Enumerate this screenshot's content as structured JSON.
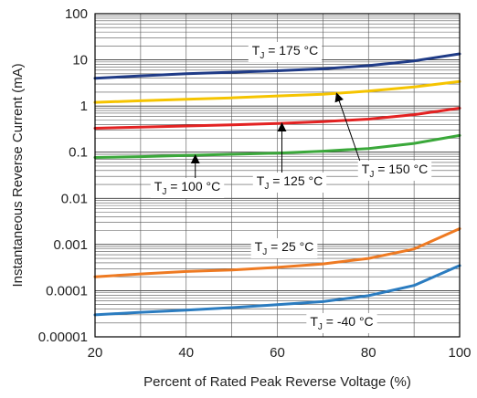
{
  "chart_data": {
    "type": "line",
    "xlabel": "Percent of Rated Peak Reverse Voltage (%)",
    "ylabel": "Instantaneous Reverse Current (mA)",
    "xlim": [
      20,
      100
    ],
    "ylim": [
      1e-05,
      100
    ],
    "yscale": "log",
    "grid": true,
    "x_ticks": [
      20,
      40,
      60,
      80,
      100
    ],
    "x_tick_labels": [
      "20",
      "40",
      "60",
      "80",
      "100"
    ],
    "y_ticks": [
      1e-05,
      0.0001,
      0.001,
      0.01,
      0.1,
      1,
      10,
      100
    ],
    "y_tick_labels": [
      "0.00001",
      "0.0001",
      "0.001",
      "0.01",
      "0.1",
      "1",
      "10",
      "100"
    ],
    "series": [
      {
        "name": "T_J = 175 °C",
        "color": "#1f3b87",
        "x": [
          20,
          30,
          40,
          50,
          60,
          70,
          80,
          90,
          100
        ],
        "y": [
          4.0,
          4.5,
          5.0,
          5.4,
          5.8,
          6.4,
          7.5,
          9.5,
          13.5
        ]
      },
      {
        "name": "T_J = 150 °C",
        "color": "#f5c400",
        "x": [
          20,
          30,
          40,
          50,
          60,
          70,
          80,
          90,
          100
        ],
        "y": [
          1.2,
          1.3,
          1.4,
          1.5,
          1.65,
          1.8,
          2.1,
          2.6,
          3.4
        ]
      },
      {
        "name": "T_J = 125 °C",
        "color": "#e32222",
        "x": [
          20,
          30,
          40,
          50,
          60,
          70,
          80,
          90,
          100
        ],
        "y": [
          0.33,
          0.35,
          0.37,
          0.39,
          0.42,
          0.46,
          0.52,
          0.65,
          0.9
        ]
      },
      {
        "name": "T_J = 100 °C",
        "color": "#3aa83a",
        "x": [
          20,
          30,
          40,
          50,
          60,
          70,
          80,
          90,
          100
        ],
        "y": [
          0.077,
          0.08,
          0.085,
          0.09,
          0.095,
          0.105,
          0.12,
          0.155,
          0.23
        ]
      },
      {
        "name": "T_J = 25 °C",
        "color": "#ee7a22",
        "x": [
          20,
          30,
          40,
          50,
          60,
          70,
          80,
          90,
          100
        ],
        "y": [
          0.0002,
          0.00023,
          0.00026,
          0.00028,
          0.00032,
          0.00038,
          0.0005,
          0.0008,
          0.0022
        ]
      },
      {
        "name": "T_J = -40 °C",
        "color": "#2b7cc0",
        "x": [
          20,
          30,
          40,
          50,
          60,
          70,
          80,
          90,
          100
        ],
        "y": [
          3e-05,
          3.4e-05,
          3.8e-05,
          4.3e-05,
          5e-05,
          5.8e-05,
          7.8e-05,
          0.00013,
          0.00035
        ]
      }
    ],
    "annotations": [
      {
        "series": 0,
        "sub": "J",
        "text_after": " = 175 °C"
      },
      {
        "series": 1,
        "sub": "J",
        "text_after": " = 150 °C",
        "arrow_to_x": 73
      },
      {
        "series": 2,
        "sub": "J",
        "text_after": " = 125 °C",
        "arrow_to_x": 61
      },
      {
        "series": 3,
        "sub": "J",
        "text_after": " = 100 °C",
        "arrow_to_x": 42
      },
      {
        "series": 4,
        "sub": "J",
        "text_after": " = 25 °C"
      },
      {
        "series": 5,
        "sub": "J",
        "text_after": " = -40 °C"
      }
    ]
  }
}
